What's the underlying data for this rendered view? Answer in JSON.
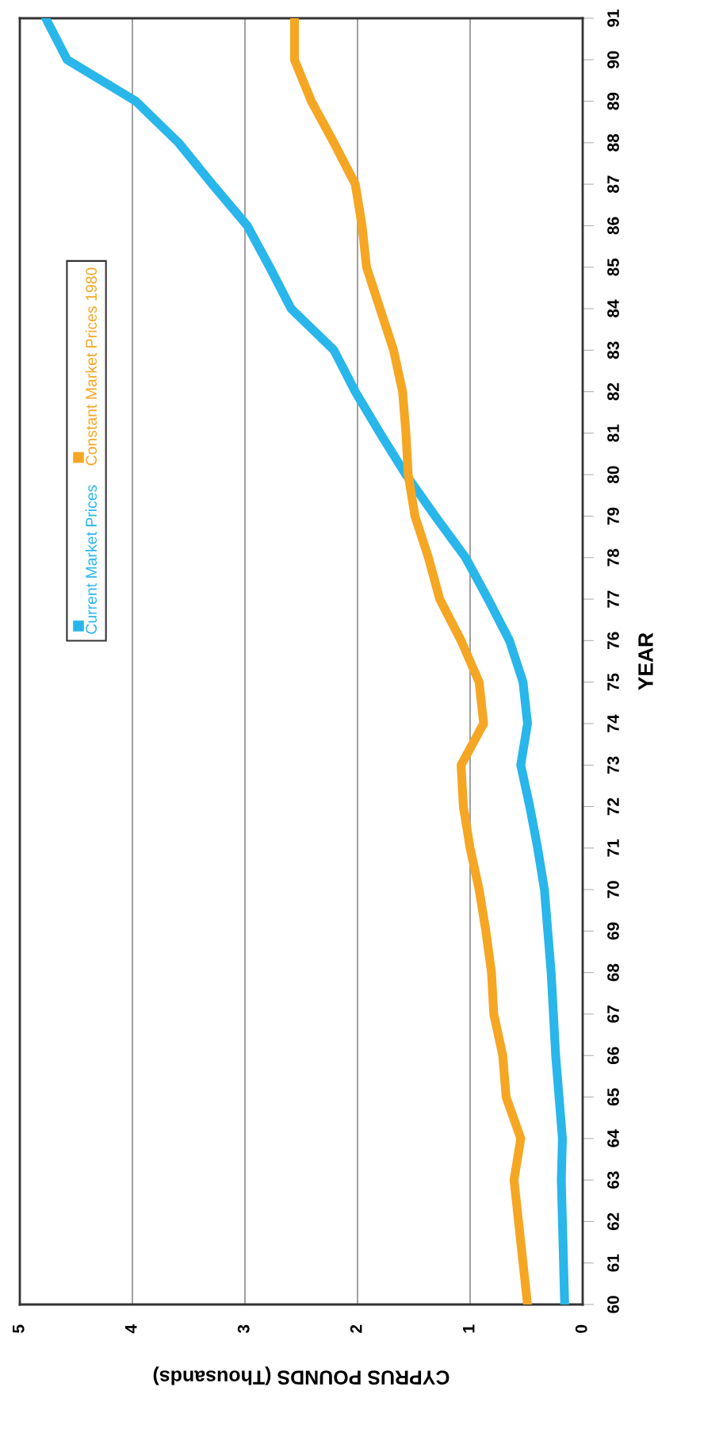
{
  "chart_data": {
    "type": "line",
    "orientation": "horizontal",
    "xlabel": "CYPRUS POUNDS (Thousands)",
    "ylabel": "YEAR",
    "categories": [
      "91",
      "90",
      "89",
      "88",
      "87",
      "86",
      "85",
      "84",
      "83",
      "82",
      "81",
      "80",
      "79",
      "78",
      "77",
      "76",
      "75",
      "74",
      "73",
      "72",
      "71",
      "70",
      "69",
      "68",
      "67",
      "66",
      "65",
      "64",
      "63",
      "62",
      "61",
      "60"
    ],
    "xlim": [
      5,
      0
    ],
    "xticks": [
      0,
      1,
      2,
      3,
      4,
      5
    ],
    "grid": "x",
    "legend": "left",
    "series": [
      {
        "name": "Current Market Prices",
        "color": "#29b6ea",
        "values": [
          4.77,
          4.58,
          3.97,
          3.59,
          3.29,
          2.98,
          2.78,
          2.59,
          2.21,
          2.02,
          1.8,
          1.57,
          1.31,
          1.04,
          0.84,
          0.65,
          0.53,
          0.49,
          0.55,
          0.47,
          0.4,
          0.34,
          0.31,
          0.28,
          0.26,
          0.24,
          0.21,
          0.18,
          0.19,
          0.18,
          0.17,
          0.16
        ]
      },
      {
        "name": "Constant Market Prices 1980",
        "color": "#f5a623",
        "values": [
          2.56,
          2.56,
          2.41,
          2.21,
          2.02,
          1.96,
          1.92,
          1.8,
          1.68,
          1.6,
          1.57,
          1.55,
          1.49,
          1.37,
          1.27,
          1.08,
          0.92,
          0.88,
          1.08,
          1.06,
          1.0,
          0.92,
          0.86,
          0.81,
          0.79,
          0.71,
          0.68,
          0.55,
          0.61,
          0.57,
          0.53,
          0.49
        ]
      }
    ]
  }
}
